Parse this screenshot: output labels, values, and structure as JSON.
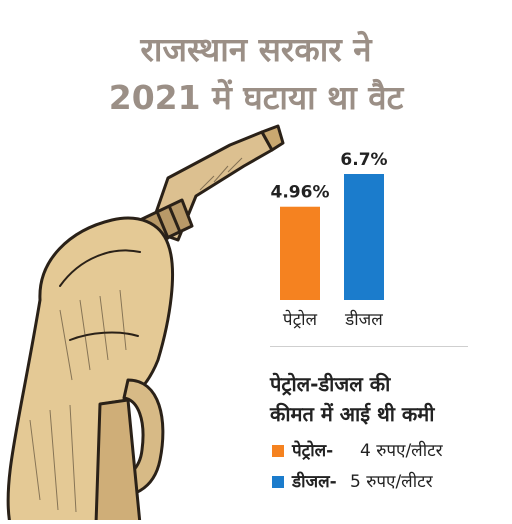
{
  "title": {
    "line1": "राजस्थान सरकार ने",
    "line2": "2021 में घटाया था वैट"
  },
  "chart_data": {
    "type": "bar",
    "categories": [
      "पेट्रोल",
      "डीजल"
    ],
    "values": [
      4.96,
      6.7
    ],
    "value_labels": [
      "4.96%",
      "6.7%"
    ],
    "colors": [
      "#f58220",
      "#1b7ccc"
    ],
    "ylim": [
      0,
      6.7
    ],
    "grid": false
  },
  "subtitle": {
    "line1": "पेट्रोल-डीजल की",
    "line2": "कीमत में आई थी कमी"
  },
  "legend": [
    {
      "name": "पेट्रोल-",
      "value": "4 रुपए/लीटर",
      "color": "#f58220"
    },
    {
      "name": "डीजल-",
      "value": "5 रुपए/लीटर",
      "color": "#1b7ccc"
    }
  ],
  "illustration": {
    "icon": "fuel-nozzle-icon",
    "color": "#d9b985"
  }
}
